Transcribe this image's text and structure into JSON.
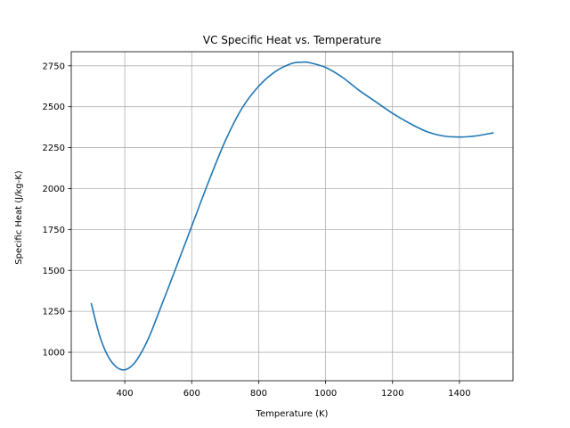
{
  "chart_data": {
    "type": "line",
    "title": "VC Specific Heat vs. Temperature",
    "xlabel": "Temperature (K)",
    "ylabel": "Specific Heat (J/kg-K)",
    "xlim": [
      240,
      1560
    ],
    "ylim": [
      826,
      2836
    ],
    "grid": true,
    "line_color": "#1f77b4",
    "xticks": [
      400,
      600,
      800,
      1000,
      1200,
      1400
    ],
    "yticks": [
      1000,
      1250,
      1500,
      1750,
      2000,
      2250,
      2500,
      2750
    ],
    "x": [
      300,
      325,
      350,
      375,
      400,
      425,
      450,
      475,
      500,
      550,
      600,
      650,
      700,
      750,
      800,
      850,
      900,
      930,
      950,
      1000,
      1050,
      1100,
      1150,
      1200,
      1250,
      1300,
      1350,
      1400,
      1450,
      1500
    ],
    "y": [
      1296,
      1100,
      975,
      910,
      893,
      925,
      1000,
      1105,
      1235,
      1500,
      1770,
      2040,
      2290,
      2490,
      2625,
      2715,
      2765,
      2772,
      2770,
      2740,
      2680,
      2600,
      2530,
      2460,
      2400,
      2350,
      2322,
      2315,
      2322,
      2340
    ]
  }
}
